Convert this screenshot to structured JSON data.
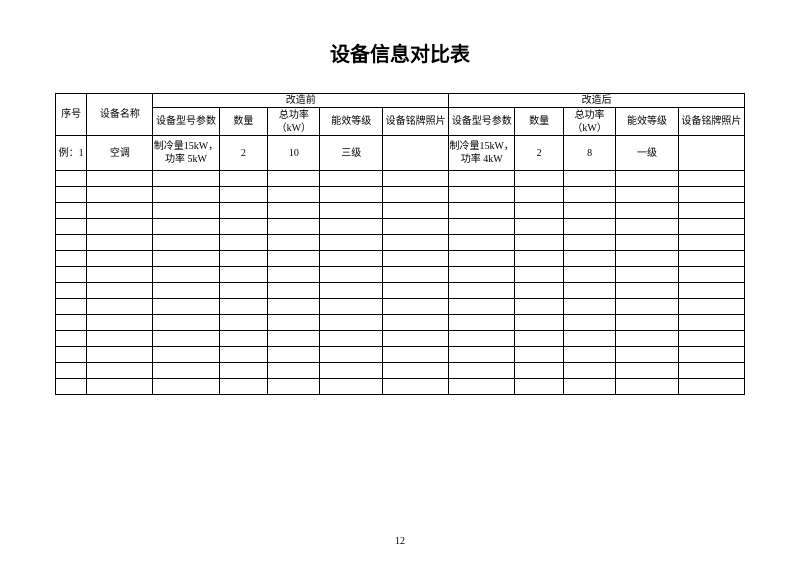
{
  "title": "设备信息对比表",
  "pageNumber": "12",
  "table": {
    "type": "table",
    "border_color": "#000000",
    "background_color": "#ffffff",
    "text_color": "#000000",
    "header_fontsize": 10,
    "cell_fontsize": 10,
    "columns": {
      "seq": "序号",
      "name": "设备名称",
      "group_before": "改造前",
      "group_after": "改造后",
      "spec": "设备型号参数",
      "qty": "数量",
      "power_l1": "总功率",
      "power_l2": "（kW）",
      "eff": "能效等级",
      "photo": "设备铭牌照片"
    },
    "data_row": {
      "seq": "例：1",
      "name": "空调",
      "before": {
        "spec": "制冷量15kW，功率 5kW",
        "qty": "2",
        "power": "10",
        "eff": "三级",
        "photo": ""
      },
      "after": {
        "spec": "制冷量15kW，功率 4kW",
        "qty": "2",
        "power": "8",
        "eff": "一级",
        "photo": ""
      }
    },
    "empty_row_count": 14
  }
}
